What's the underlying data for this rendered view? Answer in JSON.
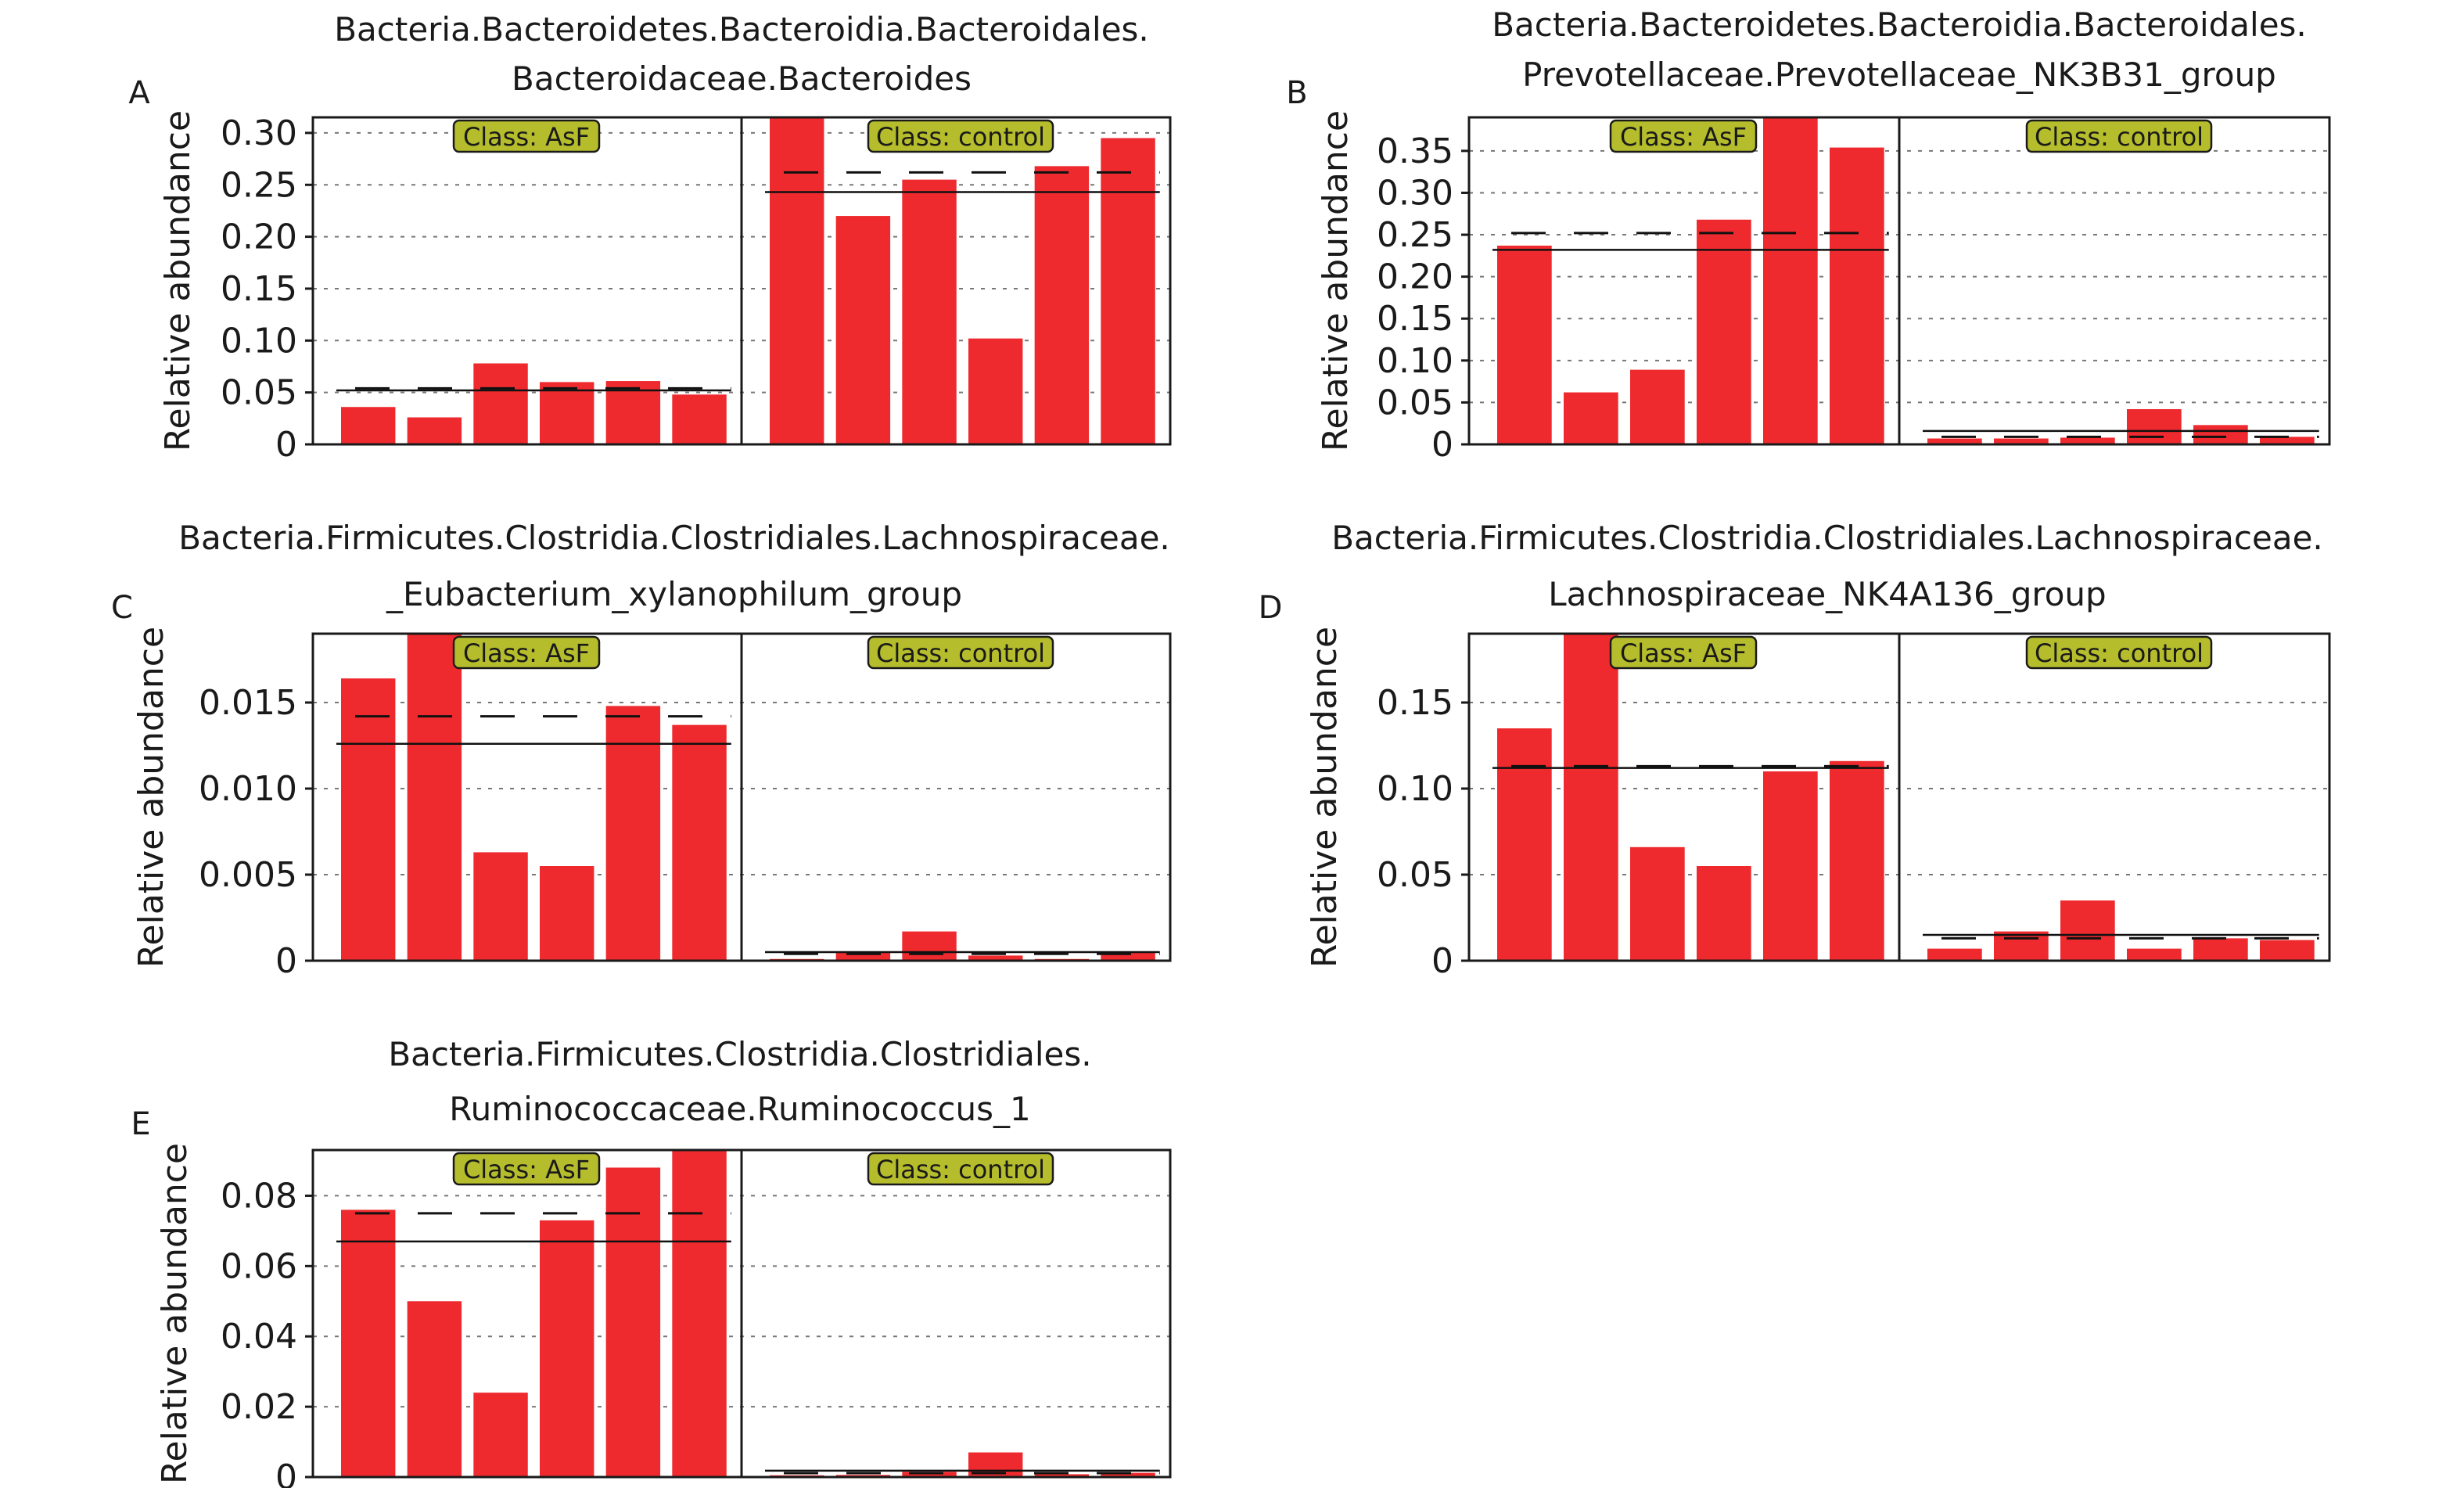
{
  "colors": {
    "bar": "#ee2a2e",
    "badge_fill": "#b5bd2c",
    "badge_stroke": "#1a1a1a",
    "grid": "#777777",
    "axis": "#1a1a1a"
  },
  "chart_data": [
    {
      "type": "bar",
      "panel": "A",
      "title_lines": [
        "Bacteria.Bacteroidetes.Bacteroidia.Bacteroidales.",
        "Bacteroidaceae.Bacteroides"
      ],
      "ylabel": "Relative abundance",
      "ylim": [
        0,
        0.315
      ],
      "yticks": [
        0,
        0.05,
        0.1,
        0.15,
        0.2,
        0.25,
        0.3
      ],
      "ytick_labels": [
        "0",
        "0.05",
        "0.10",
        "0.15",
        "0.20",
        "0.25",
        "0.30"
      ],
      "grid": true,
      "groups": [
        {
          "label": "Class: AsF",
          "values": [
            0.036,
            0.026,
            0.078,
            0.06,
            0.061,
            0.048
          ],
          "mean": 0.052,
          "median": 0.054
        },
        {
          "label": "Class: control",
          "values": [
            0.33,
            0.22,
            0.255,
            0.102,
            0.268,
            0.295
          ],
          "mean": 0.243,
          "median": 0.262
        }
      ]
    },
    {
      "type": "bar",
      "panel": "B",
      "title_lines": [
        "Bacteria.Bacteroidetes.Bacteroidia.Bacteroidales.",
        "Prevotellaceae.Prevotellaceae_NK3B31_group"
      ],
      "ylabel": "Relative abundance",
      "ylim": [
        0,
        0.39
      ],
      "yticks": [
        0,
        0.05,
        0.1,
        0.15,
        0.2,
        0.25,
        0.3,
        0.35
      ],
      "ytick_labels": [
        "0",
        "0.05",
        "0.10",
        "0.15",
        "0.20",
        "0.25",
        "0.30",
        "0.35"
      ],
      "grid": true,
      "groups": [
        {
          "label": "Class: AsF",
          "values": [
            0.237,
            0.062,
            0.089,
            0.268,
            0.41,
            0.354
          ],
          "mean": 0.232,
          "median": 0.252
        },
        {
          "label": "Class: control",
          "values": [
            0.007,
            0.007,
            0.008,
            0.042,
            0.023,
            0.009
          ],
          "mean": 0.016,
          "median": 0.009
        }
      ]
    },
    {
      "type": "bar",
      "panel": "C",
      "title_lines": [
        "Bacteria.Firmicutes.Clostridia.Clostridiales.Lachnospiraceae.",
        "_Eubacterium_xylanophilum_group"
      ],
      "ylabel": "Relative abundance",
      "ylim": [
        0,
        0.019
      ],
      "yticks": [
        0,
        0.005,
        0.01,
        0.015
      ],
      "ytick_labels": [
        "0",
        "0.005",
        "0.010",
        "0.015"
      ],
      "grid": true,
      "groups": [
        {
          "label": "Class: AsF",
          "values": [
            0.0164,
            0.021,
            0.0063,
            0.0055,
            0.0148,
            0.0137
          ],
          "mean": 0.0126,
          "median": 0.0142
        },
        {
          "label": "Class: control",
          "values": [
            0.0001,
            0.0005,
            0.0017,
            0.0003,
            0.0001,
            0.0005
          ],
          "mean": 0.0005,
          "median": 0.0004
        }
      ]
    },
    {
      "type": "bar",
      "panel": "D",
      "title_lines": [
        "Bacteria.Firmicutes.Clostridia.Clostridiales.Lachnospiraceae.",
        "Lachnospiraceae_NK4A136_group"
      ],
      "ylabel": "Relative abundance",
      "ylim": [
        0,
        0.19
      ],
      "yticks": [
        0,
        0.05,
        0.1,
        0.15
      ],
      "ytick_labels": [
        "0",
        "0.05",
        "0.10",
        "0.15"
      ],
      "grid": true,
      "groups": [
        {
          "label": "Class: AsF",
          "values": [
            0.135,
            0.21,
            0.066,
            0.055,
            0.11,
            0.116
          ],
          "mean": 0.112,
          "median": 0.113
        },
        {
          "label": "Class: control",
          "values": [
            0.007,
            0.017,
            0.035,
            0.007,
            0.013,
            0.012
          ],
          "mean": 0.015,
          "median": 0.013
        }
      ]
    },
    {
      "type": "bar",
      "panel": "E",
      "title_lines": [
        "Bacteria.Firmicutes.Clostridia.Clostridiales.",
        "Ruminococcaceae.Ruminococcus_1"
      ],
      "ylabel": "Relative abundance",
      "ylim": [
        0,
        0.093
      ],
      "yticks": [
        0,
        0.02,
        0.04,
        0.06,
        0.08
      ],
      "ytick_labels": [
        "0",
        "0.02",
        "0.04",
        "0.06",
        "0.08"
      ],
      "grid": true,
      "groups": [
        {
          "label": "Class: AsF",
          "values": [
            0.076,
            0.05,
            0.024,
            0.073,
            0.088,
            0.1
          ],
          "mean": 0.067,
          "median": 0.075
        },
        {
          "label": "Class: control",
          "values": [
            0.0005,
            0.0006,
            0.0015,
            0.007,
            0.0008,
            0.0012
          ],
          "mean": 0.0018,
          "median": 0.0011
        }
      ]
    }
  ]
}
